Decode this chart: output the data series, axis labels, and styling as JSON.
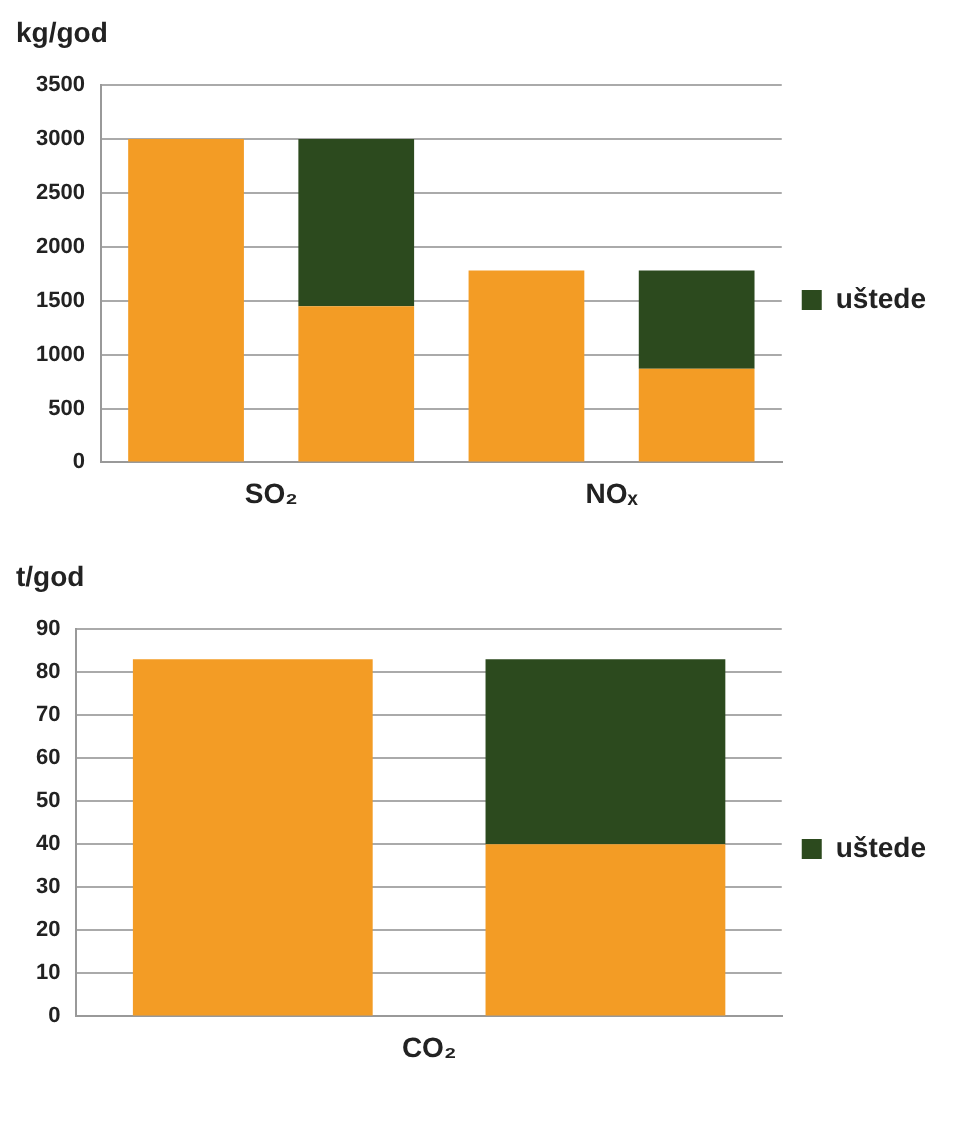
{
  "chart_data": [
    {
      "type": "bar",
      "ylabel": "kg/god",
      "categories": [
        "SO₂",
        null,
        "NOₓ",
        null
      ],
      "stacked": true,
      "series": [
        {
          "color": "#f39c25",
          "values": [
            3000,
            1450,
            1780,
            870
          ]
        },
        {
          "name": "uštede",
          "color": "#2c4a1e",
          "values": [
            null,
            1550,
            null,
            910
          ]
        }
      ],
      "ylim": [
        0,
        3500
      ],
      "yticks": [
        0,
        500,
        1000,
        1500,
        2000,
        2500,
        3000,
        3500
      ],
      "grid": "y",
      "legend": "right"
    },
    {
      "type": "bar",
      "ylabel": "t/god",
      "categories": [
        "CO₂",
        null
      ],
      "stacked": true,
      "series": [
        {
          "color": "#f39c25",
          "values": [
            83,
            40
          ]
        },
        {
          "name": "uštede",
          "color": "#2c4a1e",
          "values": [
            null,
            43
          ]
        }
      ],
      "ylim": [
        0,
        90
      ],
      "yticks": [
        0,
        10,
        20,
        30,
        40,
        50,
        60,
        70,
        80,
        90
      ],
      "grid": "y",
      "legend": "right"
    }
  ]
}
